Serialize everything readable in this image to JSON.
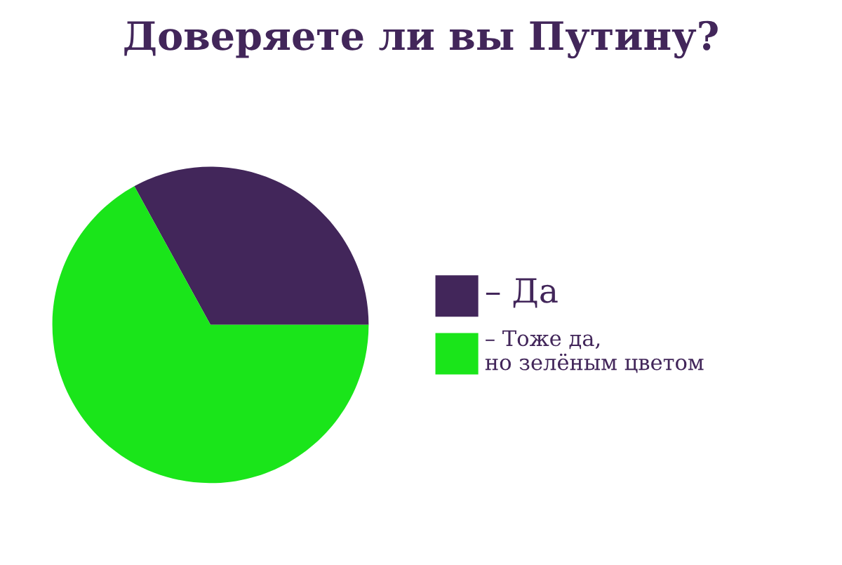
{
  "chart_data": {
    "type": "pie",
    "title": "Доверяете ли вы Путину?",
    "categories": [
      "– Да",
      "– Тоже да,\nно зелёным цветом"
    ],
    "values": [
      33,
      67
    ],
    "colors": [
      "#42265a",
      "#1ae51a"
    ],
    "legend": "right"
  }
}
